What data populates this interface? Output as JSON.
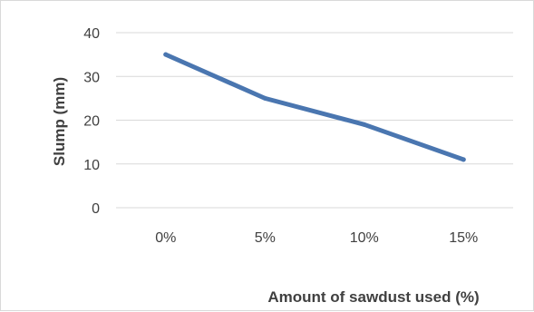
{
  "chart_data": {
    "type": "line",
    "categories": [
      "0%",
      "5%",
      "10%",
      "15%"
    ],
    "series": [
      {
        "values": [
          35,
          25,
          19,
          11
        ],
        "color": "#4a76b0"
      }
    ],
    "ylim": [
      0,
      40
    ],
    "yticks": [
      0,
      10,
      20,
      30,
      40
    ],
    "xlabel": "Amount of sawdust used (%)",
    "ylabel": "Slump (mm)",
    "grid": true,
    "legend": "none"
  }
}
